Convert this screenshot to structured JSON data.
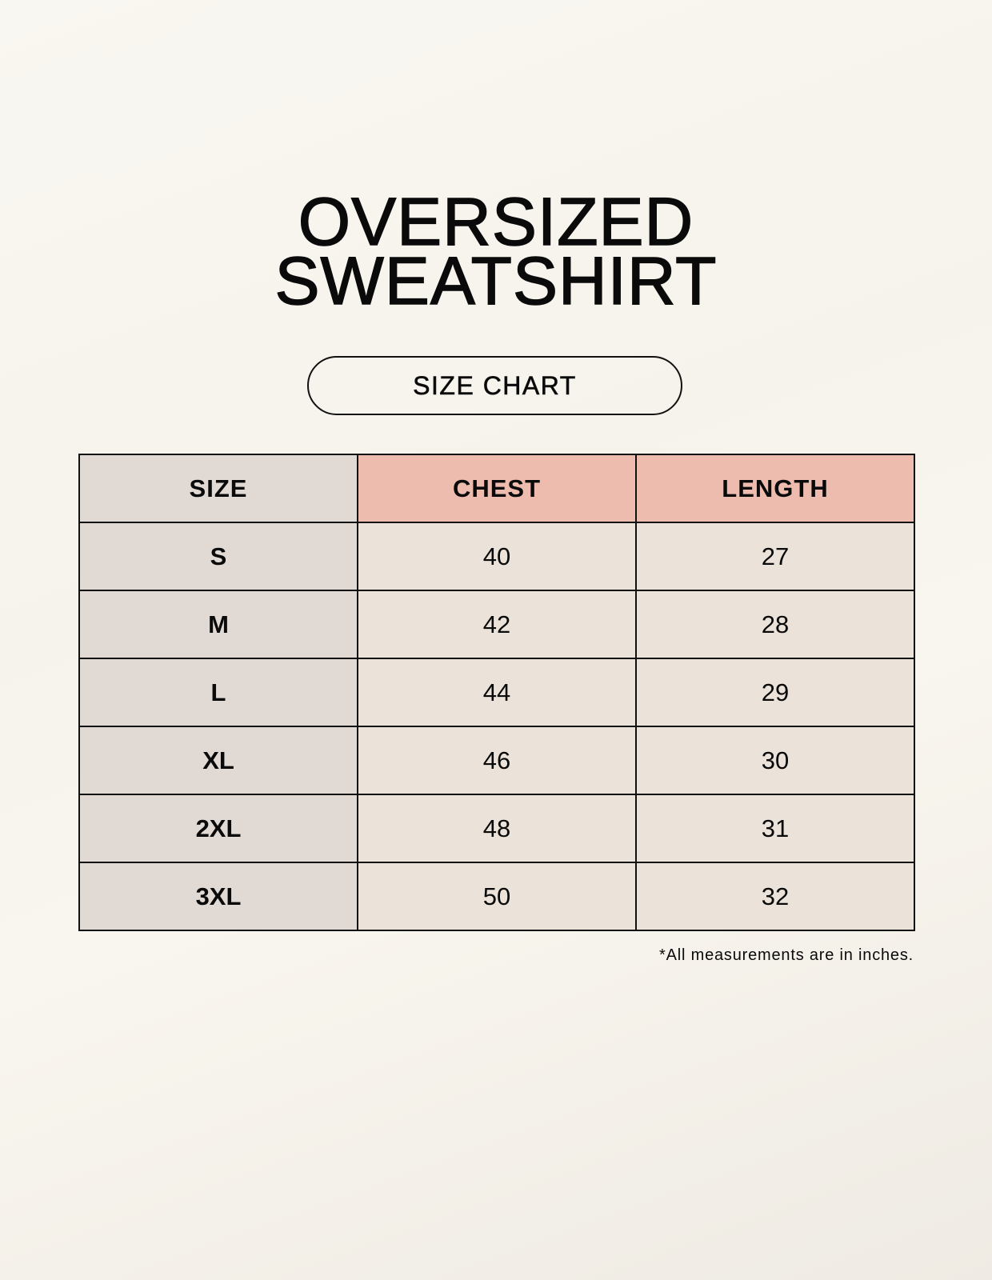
{
  "title": {
    "line1": "OVERSIZED",
    "line2": "SWEATSHIRT"
  },
  "badge": "SIZE CHART",
  "table": {
    "headers": [
      "SIZE",
      "CHEST",
      "LENGTH"
    ],
    "rows": [
      [
        "S",
        "40",
        "27"
      ],
      [
        "M",
        "42",
        "28"
      ],
      [
        "L",
        "44",
        "29"
      ],
      [
        "XL",
        "46",
        "30"
      ],
      [
        "2XL",
        "48",
        "31"
      ],
      [
        "3XL",
        "50",
        "32"
      ]
    ]
  },
  "footnote": "*All measurements are in inches.",
  "colors": {
    "size_column": "#e1d9d3",
    "header_accent": "#eebcaf",
    "cell": "#ebe3d9"
  }
}
